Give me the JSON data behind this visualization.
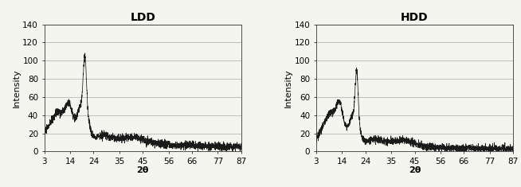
{
  "title_left": "LDD",
  "title_right": "HDD",
  "xlabel": "2θ",
  "ylabel": "Intensity",
  "xlim": [
    3,
    87
  ],
  "ylim": [
    0,
    140
  ],
  "yticks": [
    0,
    20,
    40,
    60,
    80,
    100,
    120,
    140
  ],
  "xticks": [
    3,
    14,
    24,
    35,
    45,
    56,
    66,
    77,
    87
  ],
  "line_color": "#1a1a1a",
  "background_color": "#f5f5f0",
  "grid_color": "#aaaaaa",
  "title_fontsize": 10,
  "label_fontsize": 8,
  "tick_fontsize": 7.5,
  "ldd_seed": 10,
  "hdd_seed": 20
}
